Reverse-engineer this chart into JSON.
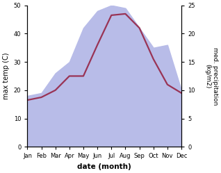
{
  "months": [
    "Jan",
    "Feb",
    "Mar",
    "Apr",
    "May",
    "Jun",
    "Jul",
    "Aug",
    "Sep",
    "Oct",
    "Nov",
    "Dec"
  ],
  "max_temp": [
    16.5,
    17.5,
    20.0,
    25.0,
    25.0,
    36.0,
    46.5,
    47.0,
    42.0,
    31.0,
    22.0,
    19.0
  ],
  "precipitation": [
    9.0,
    9.5,
    13.0,
    15.0,
    21.0,
    24.0,
    25.0,
    24.5,
    21.0,
    17.5,
    18.0,
    10.0
  ],
  "temp_color": "#993355",
  "precip_fill_color": "#b8bce8",
  "left_ylabel": "max temp (C)",
  "right_ylabel": "med. precipitation\n(kg/m2)",
  "xlabel": "date (month)",
  "left_ylim": [
    0,
    50
  ],
  "right_ylim": [
    0,
    25
  ],
  "left_yticks": [
    0,
    10,
    20,
    30,
    40,
    50
  ],
  "right_yticks": [
    0,
    5,
    10,
    15,
    20,
    25
  ],
  "bg_color": "#ffffff",
  "line_width": 1.6
}
